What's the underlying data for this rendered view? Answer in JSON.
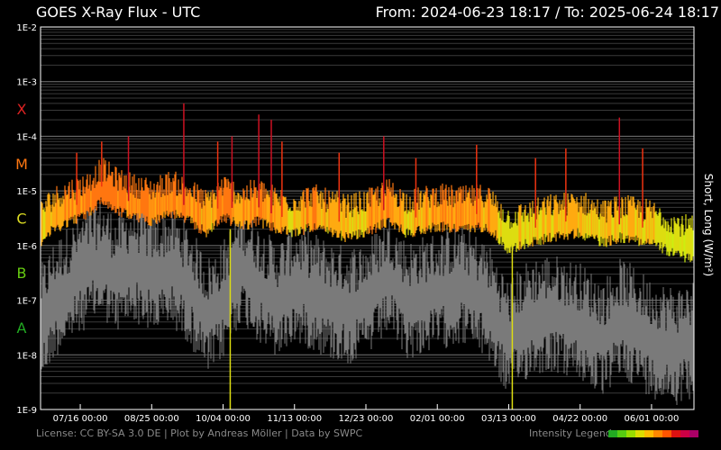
{
  "header": {
    "title": "GOES X-Ray Flux - UTC",
    "from_label": "From:",
    "from_date": "2024-06-23 18:17",
    "separator": "/",
    "to_label": "To:",
    "to_date": "2025-06-24 18:17"
  },
  "footer": {
    "license": "License: CC BY-SA 3.0 DE | Plot by Andreas Möller | Data by SWPC",
    "legend_label": "Intensity Legend",
    "legend_colors": [
      "#22aa22",
      "#55cc11",
      "#99dd00",
      "#dddd00",
      "#ffbb00",
      "#ff8800",
      "#ff5500",
      "#dd1111",
      "#cc0044",
      "#aa0066"
    ]
  },
  "chart_data": {
    "type": "line",
    "title": "GOES X-Ray Flux - UTC",
    "ylabel": "Short, Long (W/m²)",
    "yscale": "log",
    "ylim": [
      "1E-9",
      "1E-2"
    ],
    "y_ticks": [
      "1E-2",
      "1E-3",
      "1E-4",
      "1E-5",
      "1E-6",
      "1E-7",
      "1E-8",
      "1E-9"
    ],
    "flare_classes": [
      {
        "label": "X",
        "color": "#dd2222"
      },
      {
        "label": "M",
        "color": "#ff7711"
      },
      {
        "label": "C",
        "color": "#dddd22"
      },
      {
        "label": "B",
        "color": "#66cc11"
      },
      {
        "label": "A",
        "color": "#22aa22"
      }
    ],
    "x_ticks": [
      "07/16 00:00",
      "08/25 00:00",
      "10/04 00:00",
      "11/13 00:00",
      "12/23 00:00",
      "02/01 00:00",
      "03/13 00:00",
      "04/22 00:00",
      "06/01 00:00"
    ],
    "xlim": [
      "2024-06-23 18:17",
      "2025-06-24 18:17"
    ],
    "grid": true,
    "series": [
      {
        "name": "Long",
        "color_scale": "intensity",
        "samples": [
          {
            "x": "2024-06-23",
            "y": 2e-06
          },
          {
            "x": "2024-07-01",
            "y": 3.5e-06
          },
          {
            "x": "2024-07-10",
            "y": 5e-06
          },
          {
            "x": "2024-07-20",
            "y": 6.5e-06
          },
          {
            "x": "2024-07-28",
            "y": 1.2e-05
          },
          {
            "x": "2024-08-05",
            "y": 8e-06
          },
          {
            "x": "2024-08-15",
            "y": 6e-06
          },
          {
            "x": "2024-08-25",
            "y": 5e-06
          },
          {
            "x": "2024-09-05",
            "y": 7e-06
          },
          {
            "x": "2024-09-15",
            "y": 5e-06
          },
          {
            "x": "2024-09-25",
            "y": 3e-06
          },
          {
            "x": "2024-10-04",
            "y": 6e-06
          },
          {
            "x": "2024-10-14",
            "y": 4e-06
          },
          {
            "x": "2024-10-24",
            "y": 5e-06
          },
          {
            "x": "2024-11-03",
            "y": 3.5e-06
          },
          {
            "x": "2024-11-13",
            "y": 3e-06
          },
          {
            "x": "2024-11-23",
            "y": 4e-06
          },
          {
            "x": "2024-12-03",
            "y": 3e-06
          },
          {
            "x": "2024-12-13",
            "y": 2.5e-06
          },
          {
            "x": "2024-12-23",
            "y": 3e-06
          },
          {
            "x": "2025-01-05",
            "y": 5e-06
          },
          {
            "x": "2025-01-15",
            "y": 3e-06
          },
          {
            "x": "2025-02-01",
            "y": 4e-06
          },
          {
            "x": "2025-02-15",
            "y": 3.5e-06
          },
          {
            "x": "2025-03-01",
            "y": 4e-06
          },
          {
            "x": "2025-03-13",
            "y": 1.5e-06
          },
          {
            "x": "2025-03-25",
            "y": 2e-06
          },
          {
            "x": "2025-04-05",
            "y": 2.5e-06
          },
          {
            "x": "2025-04-22",
            "y": 3e-06
          },
          {
            "x": "2025-05-05",
            "y": 2e-06
          },
          {
            "x": "2025-05-15",
            "y": 2.5e-06
          },
          {
            "x": "2025-06-01",
            "y": 2e-06
          },
          {
            "x": "2025-06-15",
            "y": 1.2e-06
          },
          {
            "x": "2025-06-24",
            "y": 1e-06
          }
        ],
        "peaks": [
          {
            "x": "2024-07-14",
            "y": 5e-05
          },
          {
            "x": "2024-07-28",
            "y": 8e-05
          },
          {
            "x": "2024-08-12",
            "y": 0.0001
          },
          {
            "x": "2024-09-12",
            "y": 0.0004
          },
          {
            "x": "2024-10-01",
            "y": 8e-05
          },
          {
            "x": "2024-10-09",
            "y": 0.0001
          },
          {
            "x": "2024-10-24",
            "y": 0.00025
          },
          {
            "x": "2024-10-31",
            "y": 0.0002
          },
          {
            "x": "2024-11-06",
            "y": 8e-05
          },
          {
            "x": "2024-12-08",
            "y": 5e-05
          },
          {
            "x": "2025-01-02",
            "y": 0.0001
          },
          {
            "x": "2025-01-20",
            "y": 4e-05
          },
          {
            "x": "2025-02-23",
            "y": 7e-05
          },
          {
            "x": "2025-03-28",
            "y": 4e-05
          },
          {
            "x": "2025-04-14",
            "y": 6e-05
          },
          {
            "x": "2025-05-14",
            "y": 0.00022
          },
          {
            "x": "2025-05-27",
            "y": 6e-05
          }
        ]
      },
      {
        "name": "Short",
        "color": "#7a7a7a",
        "samples": [
          {
            "x": "2024-06-23",
            "y": 3e-08
          },
          {
            "x": "2024-07-01",
            "y": 1e-07
          },
          {
            "x": "2024-07-10",
            "y": 2e-07
          },
          {
            "x": "2024-07-20",
            "y": 4e-07
          },
          {
            "x": "2024-07-28",
            "y": 6e-07
          },
          {
            "x": "2024-08-05",
            "y": 3e-07
          },
          {
            "x": "2024-08-15",
            "y": 5e-07
          },
          {
            "x": "2024-08-25",
            "y": 3e-07
          },
          {
            "x": "2024-09-05",
            "y": 4e-07
          },
          {
            "x": "2024-09-15",
            "y": 2e-07
          },
          {
            "x": "2024-09-25",
            "y": 5e-08
          },
          {
            "x": "2024-10-04",
            "y": 1e-07
          },
          {
            "x": "2024-10-14",
            "y": 5e-07
          },
          {
            "x": "2024-10-24",
            "y": 2e-07
          },
          {
            "x": "2024-11-03",
            "y": 1e-07
          },
          {
            "x": "2024-11-13",
            "y": 2e-07
          },
          {
            "x": "2024-11-23",
            "y": 1.5e-07
          },
          {
            "x": "2024-12-03",
            "y": 1e-07
          },
          {
            "x": "2024-12-13",
            "y": 8e-08
          },
          {
            "x": "2024-12-23",
            "y": 1e-07
          },
          {
            "x": "2025-01-05",
            "y": 3e-07
          },
          {
            "x": "2025-01-15",
            "y": 1e-07
          },
          {
            "x": "2025-02-01",
            "y": 1.5e-07
          },
          {
            "x": "2025-02-15",
            "y": 2e-07
          },
          {
            "x": "2025-03-01",
            "y": 1e-07
          },
          {
            "x": "2025-03-13",
            "y": 2e-08
          },
          {
            "x": "2025-03-25",
            "y": 5e-08
          },
          {
            "x": "2025-04-05",
            "y": 6e-08
          },
          {
            "x": "2025-04-22",
            "y": 4e-08
          },
          {
            "x": "2025-05-05",
            "y": 2e-08
          },
          {
            "x": "2025-05-15",
            "y": 5e-08
          },
          {
            "x": "2025-06-01",
            "y": 2e-08
          },
          {
            "x": "2025-06-15",
            "y": 1.5e-08
          },
          {
            "x": "2025-06-24",
            "y": 2e-08
          }
        ]
      }
    ]
  }
}
